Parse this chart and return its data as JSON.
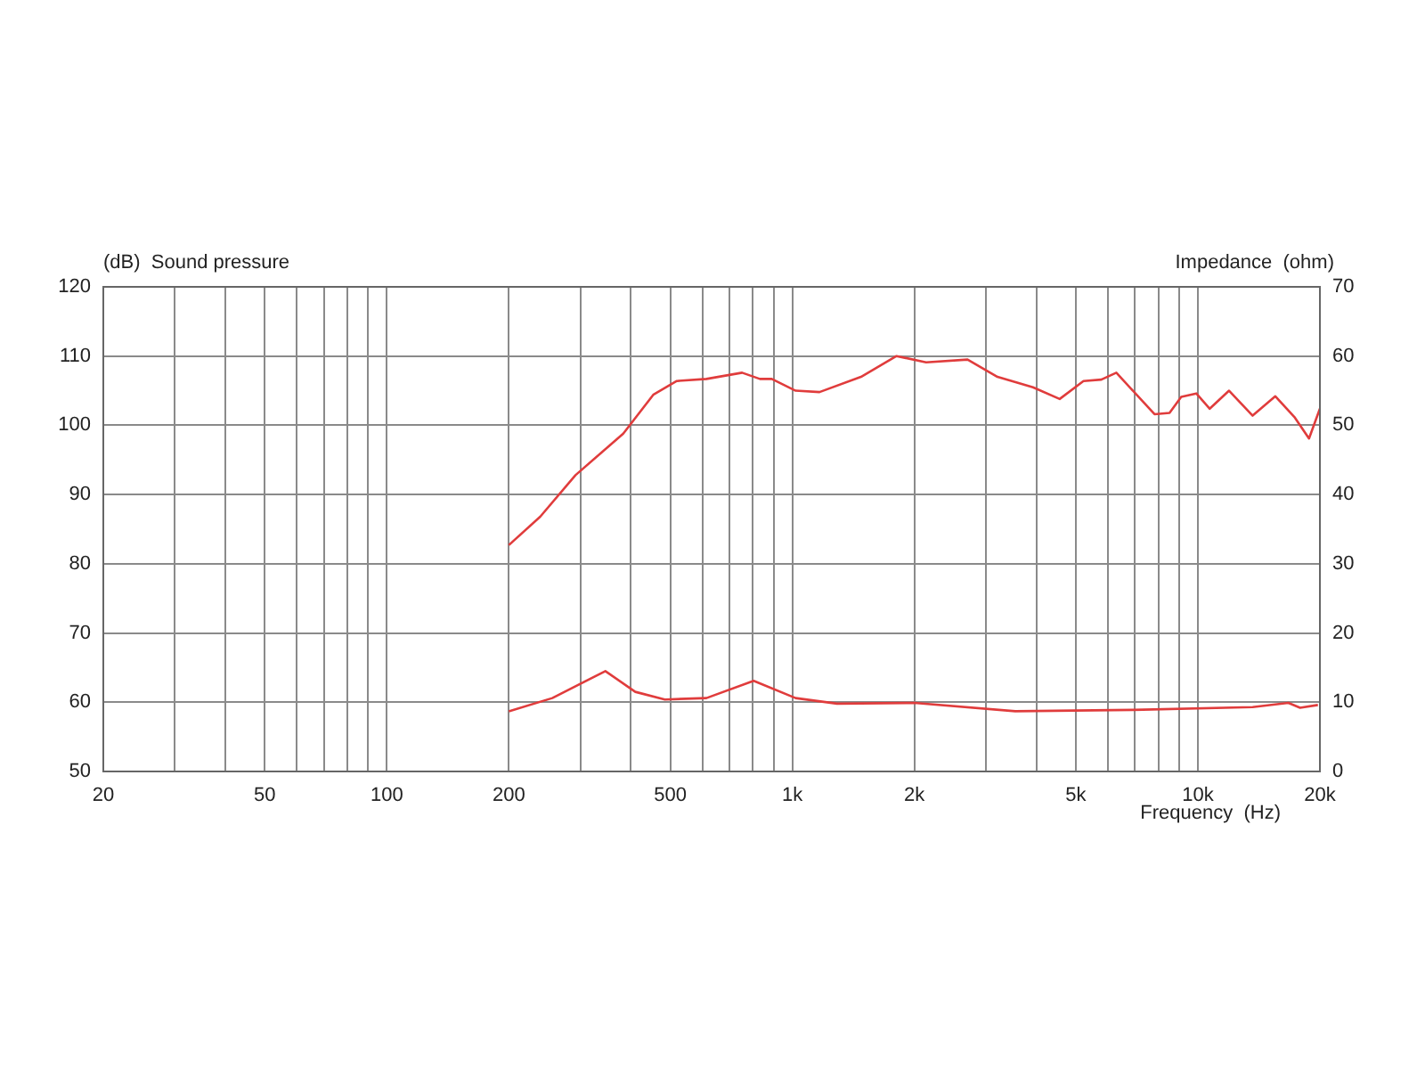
{
  "chart_data": {
    "type": "line",
    "ylabel": "(dB)  Sound pressure",
    "y2label": "Impedance  (ohm)",
    "xlabel": "Frequency  (Hz)",
    "log": "x",
    "grid": true,
    "legend": false,
    "marker": "none",
    "line_style": "solid",
    "xlim": [
      20,
      20000
    ],
    "xticks": [
      20,
      {
        "value": 30,
        "label": null
      },
      {
        "value": 40,
        "label": null
      },
      50,
      {
        "value": 60,
        "label": null
      },
      {
        "value": 70,
        "label": null
      },
      {
        "value": 80,
        "label": null
      },
      {
        "value": 90,
        "label": null
      },
      100,
      200,
      {
        "value": 300,
        "label": null
      },
      {
        "value": 400,
        "label": null
      },
      500,
      {
        "value": 600,
        "label": null
      },
      {
        "value": 700,
        "label": null
      },
      {
        "value": 800,
        "label": null
      },
      {
        "value": 900,
        "label": null
      },
      {
        "value": 1000,
        "label": "1k"
      },
      {
        "value": 2000,
        "label": "2k"
      },
      {
        "value": 3000,
        "label": null
      },
      {
        "value": 4000,
        "label": null
      },
      {
        "value": 5000,
        "label": "5k"
      },
      {
        "value": 6000,
        "label": null
      },
      {
        "value": 7000,
        "label": null
      },
      {
        "value": 8000,
        "label": null
      },
      {
        "value": 9000,
        "label": null
      },
      {
        "value": 10000,
        "label": "10k"
      },
      {
        "value": 20000,
        "label": "20k"
      }
    ],
    "ylim": [
      50,
      120
    ],
    "yticks": [
      50,
      60,
      70,
      80,
      90,
      100,
      110,
      120
    ],
    "y2lim": [
      0,
      70
    ],
    "y2ticks": [
      0,
      10,
      20,
      30,
      40,
      50,
      60,
      70
    ],
    "series": [
      {
        "color": "#e03c3c",
        "x": [
          200,
          239,
          292,
          383,
          454,
          519,
          614,
          752,
          832,
          890,
          1019,
          1167,
          1477,
          1807,
          2138,
          2705,
          3206,
          3922,
          4564,
          5224,
          5781,
          6296,
          7820,
          8516,
          9101,
          9913,
          10700,
          11940,
          13650,
          15530,
          17300,
          18800,
          20000
        ],
        "values": [
          82.7,
          86.8,
          92.8,
          98.8,
          104.4,
          106.4,
          106.7,
          107.6,
          106.7,
          106.7,
          105.0,
          104.8,
          107.0,
          110.0,
          109.1,
          109.5,
          107.0,
          105.5,
          103.8,
          106.4,
          106.6,
          107.6,
          101.6,
          101.8,
          104.1,
          104.6,
          102.4,
          105.0,
          101.4,
          104.2,
          101.2,
          98.1,
          102.4
        ]
      },
      {
        "color": "#e03c3c",
        "axis": "y2",
        "x": [
          200,
          256,
          346,
          410,
          485,
          614,
          803,
          1019,
          1289,
          2000,
          3547,
          6951,
          13650,
          16720,
          17870,
          19770
        ],
        "values": [
          8.7,
          10.6,
          14.5,
          11.5,
          10.4,
          10.6,
          13.1,
          10.6,
          9.8,
          9.9,
          8.7,
          8.9,
          9.3,
          9.9,
          9.2,
          9.6
        ]
      }
    ]
  }
}
